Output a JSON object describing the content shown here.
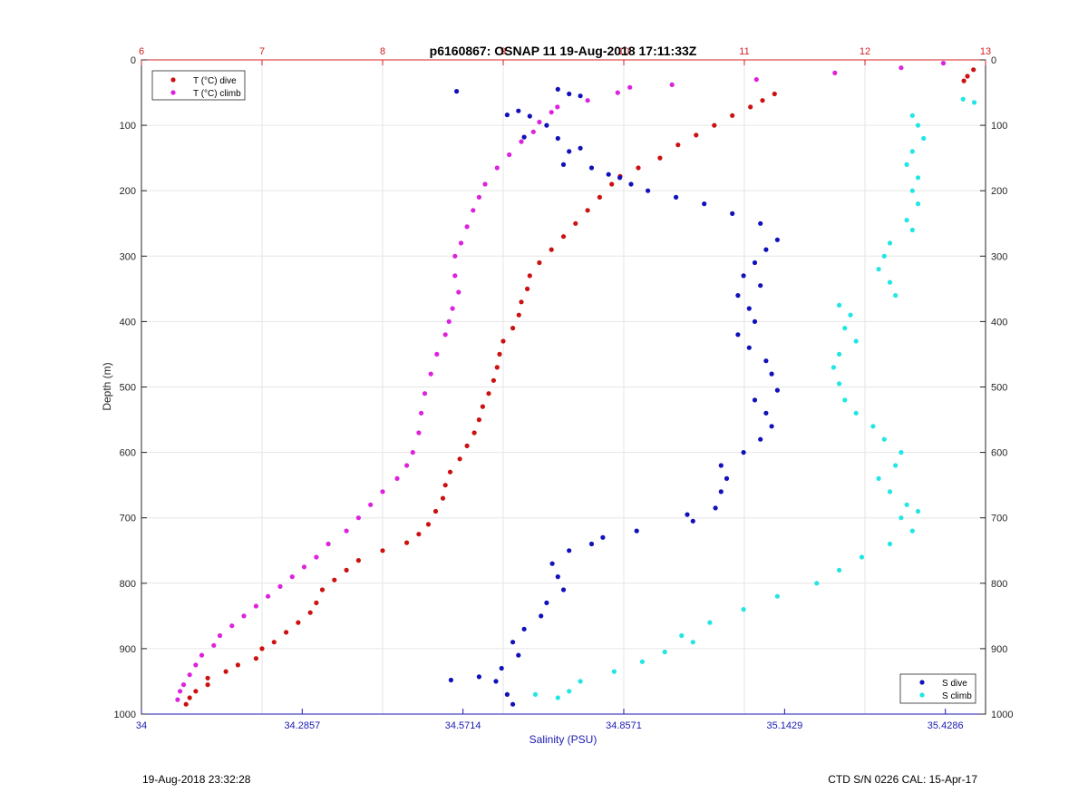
{
  "chart_data": {
    "type": "scatter",
    "title": "p6160867: OSNAP 11 19-Aug-2018 17:11:33Z",
    "ylabel": "Depth (m)",
    "xlabel_bottom": "Salinity (PSU)",
    "xlabel_top": "",
    "ylim": [
      0,
      1000
    ],
    "y_reversed": true,
    "y_ticks": [
      0,
      100,
      200,
      300,
      400,
      500,
      600,
      700,
      800,
      900,
      1000
    ],
    "top_axis": {
      "xlim": [
        6,
        13
      ],
      "ticks": [
        6,
        7,
        8,
        9,
        10,
        11,
        12,
        13
      ],
      "color": "#d42020"
    },
    "bottom_axis": {
      "xlim": [
        34,
        35.5
      ],
      "ticks": [
        34,
        34.2857,
        34.5714,
        34.8571,
        35.1429,
        35.4286
      ],
      "color": "#1a1ab0"
    },
    "grid": true,
    "legend_top": {
      "placement": "top-left",
      "entries": [
        "T (°C) dive",
        "T (°C) climb"
      ]
    },
    "legend_bottom": {
      "placement": "bottom-right",
      "entries": [
        "S dive",
        "S climb"
      ]
    },
    "series": [
      {
        "name": "T (°C) dive",
        "axis": "top",
        "color": "#cc1111",
        "points": [
          [
            12.9,
            15
          ],
          [
            12.85,
            25
          ],
          [
            12.82,
            32
          ],
          [
            11.25,
            52
          ],
          [
            11.15,
            62
          ],
          [
            11.05,
            72
          ],
          [
            10.9,
            85
          ],
          [
            10.75,
            100
          ],
          [
            10.6,
            115
          ],
          [
            10.45,
            130
          ],
          [
            10.3,
            150
          ],
          [
            10.12,
            165
          ],
          [
            9.97,
            178
          ],
          [
            9.9,
            190
          ],
          [
            9.8,
            210
          ],
          [
            9.7,
            230
          ],
          [
            9.6,
            250
          ],
          [
            9.5,
            270
          ],
          [
            9.4,
            290
          ],
          [
            9.3,
            310
          ],
          [
            9.22,
            330
          ],
          [
            9.2,
            350
          ],
          [
            9.15,
            370
          ],
          [
            9.13,
            390
          ],
          [
            9.08,
            410
          ],
          [
            9.0,
            430
          ],
          [
            8.97,
            450
          ],
          [
            8.95,
            470
          ],
          [
            8.92,
            490
          ],
          [
            8.88,
            510
          ],
          [
            8.83,
            530
          ],
          [
            8.8,
            550
          ],
          [
            8.76,
            570
          ],
          [
            8.7,
            590
          ],
          [
            8.64,
            610
          ],
          [
            8.56,
            630
          ],
          [
            8.52,
            650
          ],
          [
            8.5,
            670
          ],
          [
            8.44,
            690
          ],
          [
            8.38,
            710
          ],
          [
            8.3,
            725
          ],
          [
            8.2,
            738
          ],
          [
            8.0,
            750
          ],
          [
            7.8,
            765
          ],
          [
            7.7,
            780
          ],
          [
            7.6,
            795
          ],
          [
            7.5,
            810
          ],
          [
            7.45,
            830
          ],
          [
            7.4,
            845
          ],
          [
            7.3,
            860
          ],
          [
            7.2,
            875
          ],
          [
            7.1,
            890
          ],
          [
            7.0,
            900
          ],
          [
            6.95,
            915
          ],
          [
            6.8,
            925
          ],
          [
            6.7,
            935
          ],
          [
            6.55,
            945
          ],
          [
            6.55,
            955
          ],
          [
            6.45,
            965
          ],
          [
            6.4,
            975
          ],
          [
            6.37,
            985
          ]
        ]
      },
      {
        "name": "T (°C) climb",
        "axis": "top",
        "color": "#dd22dd",
        "points": [
          [
            12.65,
            5
          ],
          [
            12.3,
            12
          ],
          [
            11.75,
            20
          ],
          [
            11.1,
            30
          ],
          [
            10.4,
            38
          ],
          [
            10.05,
            42
          ],
          [
            9.95,
            50
          ],
          [
            9.7,
            62
          ],
          [
            9.45,
            72
          ],
          [
            9.4,
            80
          ],
          [
            9.3,
            95
          ],
          [
            9.25,
            110
          ],
          [
            9.15,
            125
          ],
          [
            9.05,
            145
          ],
          [
            8.95,
            165
          ],
          [
            8.85,
            190
          ],
          [
            8.8,
            210
          ],
          [
            8.75,
            230
          ],
          [
            8.7,
            255
          ],
          [
            8.65,
            280
          ],
          [
            8.6,
            300
          ],
          [
            8.6,
            330
          ],
          [
            8.63,
            355
          ],
          [
            8.58,
            380
          ],
          [
            8.55,
            400
          ],
          [
            8.52,
            420
          ],
          [
            8.45,
            450
          ],
          [
            8.4,
            480
          ],
          [
            8.35,
            510
          ],
          [
            8.32,
            540
          ],
          [
            8.3,
            570
          ],
          [
            8.25,
            600
          ],
          [
            8.2,
            620
          ],
          [
            8.12,
            640
          ],
          [
            8.0,
            660
          ],
          [
            7.9,
            680
          ],
          [
            7.8,
            700
          ],
          [
            7.7,
            720
          ],
          [
            7.55,
            740
          ],
          [
            7.45,
            760
          ],
          [
            7.35,
            775
          ],
          [
            7.25,
            790
          ],
          [
            7.15,
            805
          ],
          [
            7.05,
            820
          ],
          [
            6.95,
            835
          ],
          [
            6.85,
            850
          ],
          [
            6.75,
            865
          ],
          [
            6.65,
            880
          ],
          [
            6.6,
            895
          ],
          [
            6.5,
            910
          ],
          [
            6.45,
            925
          ],
          [
            6.4,
            940
          ],
          [
            6.35,
            955
          ],
          [
            6.32,
            965
          ],
          [
            6.3,
            978
          ]
        ]
      },
      {
        "name": "S dive",
        "axis": "bottom",
        "color": "#1111bb",
        "points": [
          [
            34.56,
            48
          ],
          [
            34.65,
            84
          ],
          [
            34.67,
            78
          ],
          [
            34.69,
            86
          ],
          [
            34.68,
            118
          ],
          [
            34.74,
            45
          ],
          [
            34.76,
            52
          ],
          [
            34.78,
            55
          ],
          [
            34.72,
            100
          ],
          [
            34.74,
            120
          ],
          [
            34.76,
            140
          ],
          [
            34.75,
            160
          ],
          [
            34.78,
            135
          ],
          [
            34.8,
            165
          ],
          [
            34.83,
            175
          ],
          [
            34.85,
            180
          ],
          [
            34.87,
            190
          ],
          [
            34.9,
            200
          ],
          [
            34.95,
            210
          ],
          [
            35.0,
            220
          ],
          [
            35.05,
            235
          ],
          [
            35.1,
            250
          ],
          [
            35.13,
            275
          ],
          [
            35.11,
            290
          ],
          [
            35.09,
            310
          ],
          [
            35.07,
            330
          ],
          [
            35.1,
            345
          ],
          [
            35.06,
            360
          ],
          [
            35.08,
            380
          ],
          [
            35.09,
            400
          ],
          [
            35.06,
            420
          ],
          [
            35.08,
            440
          ],
          [
            35.11,
            460
          ],
          [
            35.12,
            480
          ],
          [
            35.13,
            505
          ],
          [
            35.09,
            520
          ],
          [
            35.11,
            540
          ],
          [
            35.12,
            560
          ],
          [
            35.1,
            580
          ],
          [
            35.07,
            600
          ],
          [
            35.03,
            620
          ],
          [
            35.04,
            640
          ],
          [
            35.03,
            660
          ],
          [
            35.02,
            685
          ],
          [
            34.97,
            695
          ],
          [
            34.98,
            705
          ],
          [
            34.88,
            720
          ],
          [
            34.82,
            730
          ],
          [
            34.8,
            740
          ],
          [
            34.76,
            750
          ],
          [
            34.73,
            770
          ],
          [
            34.74,
            790
          ],
          [
            34.75,
            810
          ],
          [
            34.72,
            830
          ],
          [
            34.71,
            850
          ],
          [
            34.68,
            870
          ],
          [
            34.66,
            890
          ],
          [
            34.67,
            910
          ],
          [
            34.64,
            930
          ],
          [
            34.63,
            950
          ],
          [
            34.65,
            970
          ],
          [
            34.66,
            985
          ],
          [
            34.55,
            948
          ],
          [
            34.6,
            943
          ]
        ]
      },
      {
        "name": "S climb",
        "axis": "bottom",
        "color": "#22e5e5",
        "points": [
          [
            35.46,
            60
          ],
          [
            35.48,
            65
          ],
          [
            35.37,
            85
          ],
          [
            35.38,
            100
          ],
          [
            35.39,
            120
          ],
          [
            35.37,
            140
          ],
          [
            35.36,
            160
          ],
          [
            35.38,
            180
          ],
          [
            35.37,
            200
          ],
          [
            35.38,
            220
          ],
          [
            35.36,
            245
          ],
          [
            35.37,
            260
          ],
          [
            35.33,
            280
          ],
          [
            35.32,
            300
          ],
          [
            35.31,
            320
          ],
          [
            35.33,
            340
          ],
          [
            35.34,
            360
          ],
          [
            35.24,
            375
          ],
          [
            35.26,
            390
          ],
          [
            35.25,
            410
          ],
          [
            35.27,
            430
          ],
          [
            35.24,
            450
          ],
          [
            35.23,
            470
          ],
          [
            35.24,
            495
          ],
          [
            35.25,
            520
          ],
          [
            35.27,
            540
          ],
          [
            35.3,
            560
          ],
          [
            35.32,
            580
          ],
          [
            35.35,
            600
          ],
          [
            35.34,
            620
          ],
          [
            35.31,
            640
          ],
          [
            35.33,
            660
          ],
          [
            35.36,
            680
          ],
          [
            35.38,
            690
          ],
          [
            35.35,
            700
          ],
          [
            35.37,
            720
          ],
          [
            35.33,
            740
          ],
          [
            35.28,
            760
          ],
          [
            35.24,
            780
          ],
          [
            35.2,
            800
          ],
          [
            35.13,
            820
          ],
          [
            35.07,
            840
          ],
          [
            35.01,
            860
          ],
          [
            34.96,
            880
          ],
          [
            34.98,
            890
          ],
          [
            34.93,
            905
          ],
          [
            34.89,
            920
          ],
          [
            34.84,
            935
          ],
          [
            34.78,
            950
          ],
          [
            34.76,
            965
          ],
          [
            34.74,
            975
          ],
          [
            34.7,
            970
          ]
        ]
      }
    ]
  },
  "footer": {
    "left": "19-Aug-2018 23:32:28",
    "right": "CTD S/N 0226  CAL: 15-Apr-17"
  }
}
